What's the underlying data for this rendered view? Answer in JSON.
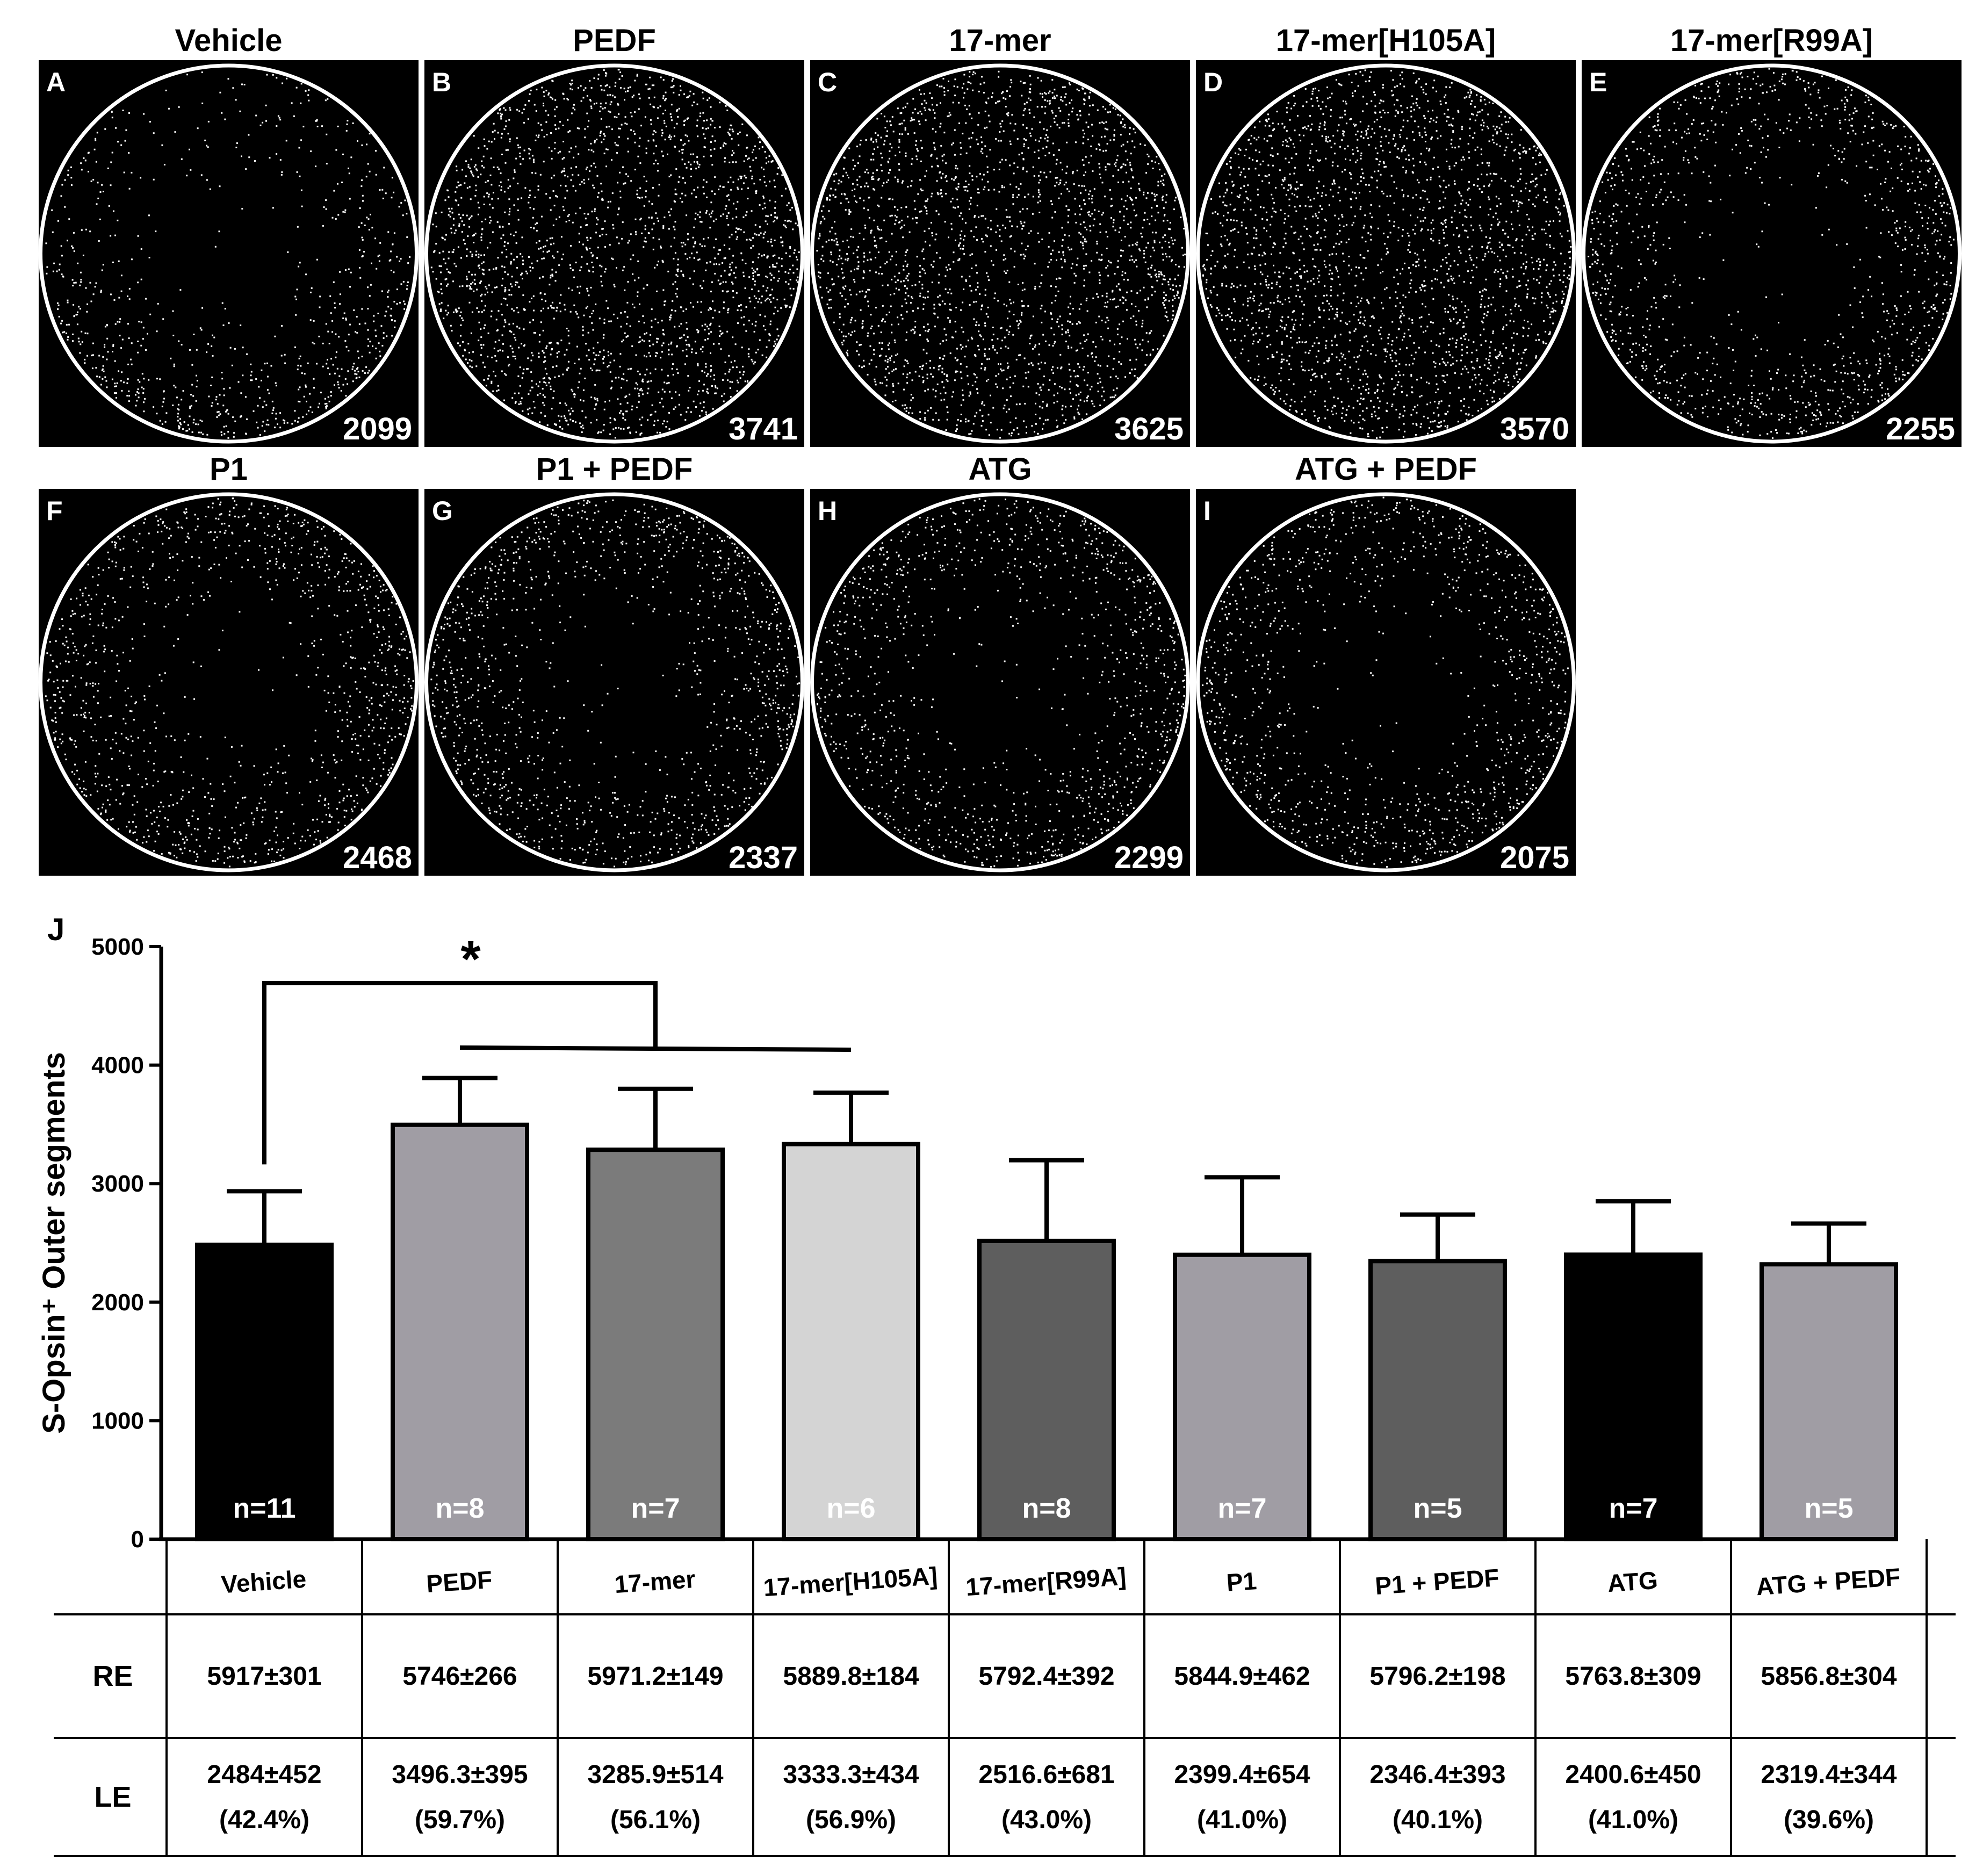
{
  "panels": [
    {
      "letter": "A",
      "title": "Vehicle",
      "count": "2099",
      "pattern": "dorsal-sparse"
    },
    {
      "letter": "B",
      "title": "PEDF",
      "count": "3741",
      "pattern": "uniform-dense"
    },
    {
      "letter": "C",
      "title": "17-mer",
      "count": "3625",
      "pattern": "uniform-dense"
    },
    {
      "letter": "D",
      "title": "17-mer[H105A]",
      "count": "3570",
      "pattern": "uniform-dense"
    },
    {
      "letter": "E",
      "title": "17-mer[R99A]",
      "count": "2255",
      "pattern": "center-sparse"
    },
    {
      "letter": "F",
      "title": "P1",
      "count": "2468",
      "pattern": "center-sparse"
    },
    {
      "letter": "G",
      "title": "P1 + PEDF",
      "count": "2337",
      "pattern": "center-sparse"
    },
    {
      "letter": "H",
      "title": "ATG",
      "count": "2299",
      "pattern": "center-sparse"
    },
    {
      "letter": "I",
      "title": "ATG + PEDF",
      "count": "2075",
      "pattern": "center-sparse"
    }
  ],
  "chart_panel_letter": "J",
  "colors": {
    "panel_background": "#000000",
    "retina_outline": "#ffffff",
    "dots": "#ffffff",
    "axis": "#000000"
  },
  "chart_data": {
    "type": "bar",
    "ylabel": "S-Opsin⁺ Outer segments",
    "ylim": [
      0,
      5000
    ],
    "yticks": [
      0,
      1000,
      2000,
      3000,
      4000,
      5000
    ],
    "categories": [
      "Vehicle",
      "PEDF",
      "17-mer",
      "17-mer[H105A]",
      "17-mer[R99A]",
      "P1",
      "P1 + PEDF",
      "ATG",
      "ATG + PEDF"
    ],
    "values": [
      2484,
      3496.3,
      3285.9,
      3333.3,
      2516.6,
      2399.4,
      2346.4,
      2400.6,
      2319.4
    ],
    "errors": [
      452,
      395,
      514,
      434,
      681,
      654,
      393,
      450,
      344
    ],
    "n_labels": [
      "n=11",
      "n=8",
      "n=7",
      "n=6",
      "n=8",
      "n=7",
      "n=5",
      "n=7",
      "n=5"
    ],
    "bar_colors": [
      "#000000",
      "#a09da4",
      "#7b7b7b",
      "#d4d4d4",
      "#5e5e5e",
      "#a09da4",
      "#5e5e5e",
      "#000000",
      "#a09da4"
    ],
    "significance_label": "*",
    "table": {
      "rows": [
        {
          "label": "RE",
          "cells": [
            [
              "5917±301"
            ],
            [
              "5746±266"
            ],
            [
              "5971.2±149"
            ],
            [
              "5889.8±184"
            ],
            [
              "5792.4±392"
            ],
            [
              "5844.9±462"
            ],
            [
              "5796.2±198"
            ],
            [
              "5763.8±309"
            ],
            [
              "5856.8±304"
            ]
          ]
        },
        {
          "label": "LE",
          "cells": [
            [
              "2484±452",
              "(42.4%)"
            ],
            [
              "3496.3±395",
              "(59.7%)"
            ],
            [
              "3285.9±514",
              "(56.1%)"
            ],
            [
              "3333.3±434",
              "(56.9%)"
            ],
            [
              "2516.6±681",
              "(43.0%)"
            ],
            [
              "2399.4±654",
              "(41.0%)"
            ],
            [
              "2346.4±393",
              "(40.1%)"
            ],
            [
              "2400.6±450",
              "(41.0%)"
            ],
            [
              "2319.4±344",
              "(39.6%)"
            ]
          ]
        }
      ]
    }
  }
}
